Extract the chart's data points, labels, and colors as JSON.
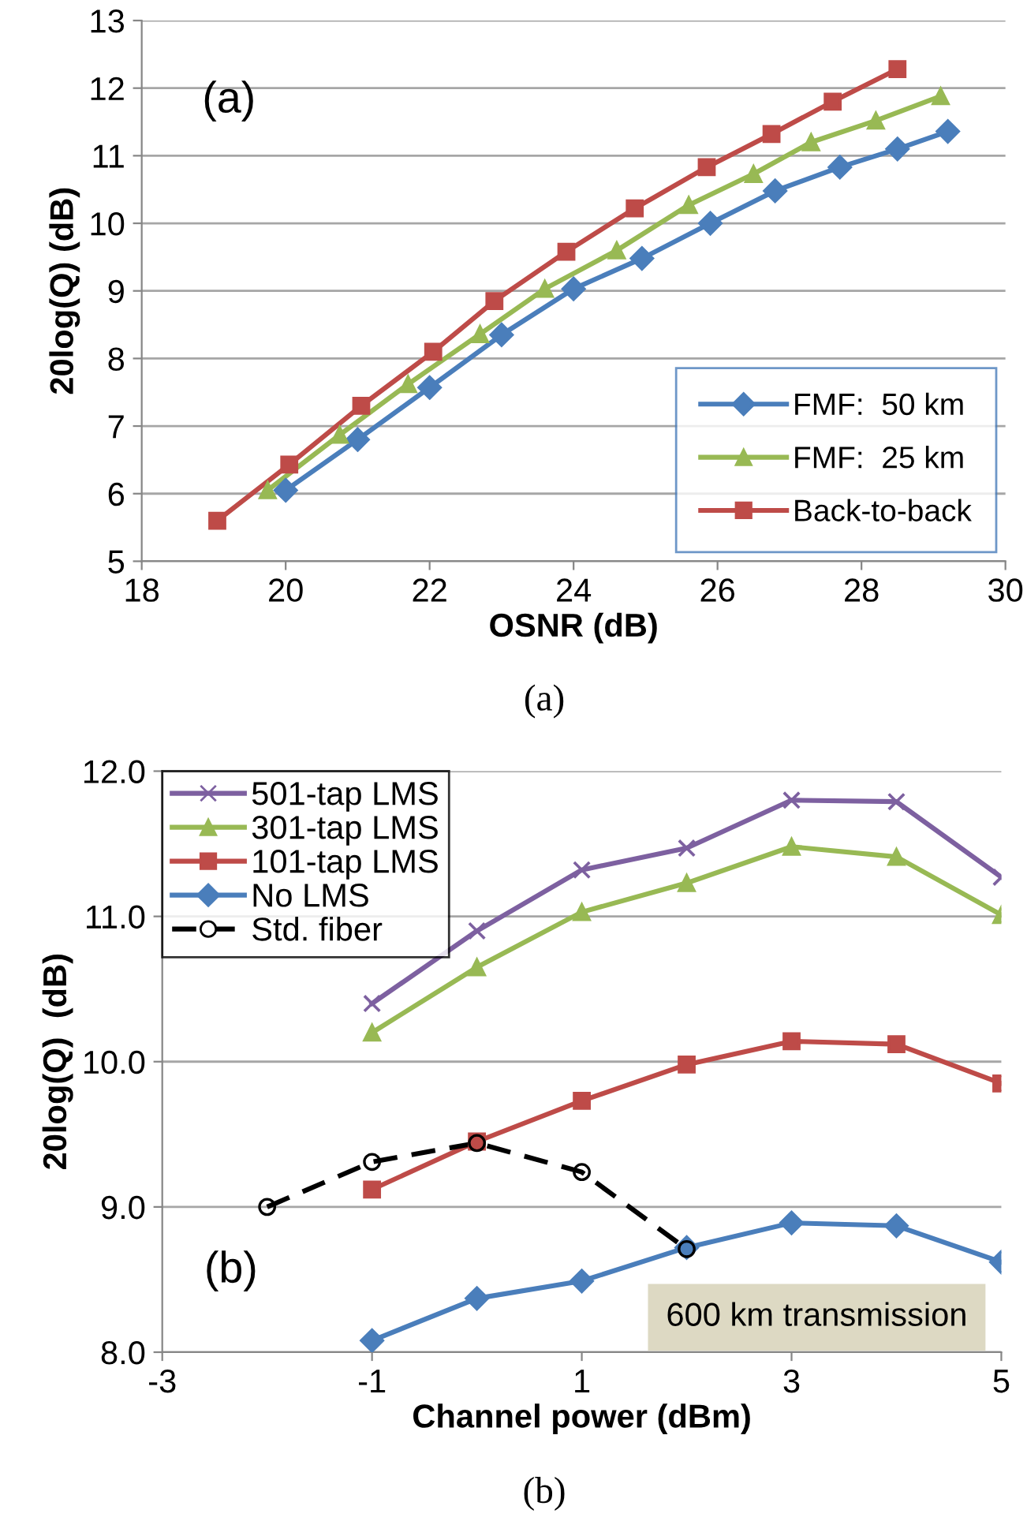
{
  "chart_data": [
    {
      "type": "line",
      "xlabel": "OSNR (dB)",
      "ylabel": "20log(Q) (dB)",
      "xlim": [
        18,
        30
      ],
      "xticks": [
        18,
        20,
        22,
        24,
        26,
        28,
        30
      ],
      "ylim": [
        5,
        13
      ],
      "yticks": [
        5,
        6,
        7,
        8,
        9,
        10,
        11,
        12,
        13
      ],
      "grid": "y",
      "legend": "bottom right",
      "annotations": [
        "(a)",
        "(a)"
      ],
      "series": [
        {
          "name": "FMF:  50 km",
          "color": "#4a7ebb",
          "marker": "diamond",
          "x": [
            20,
            21,
            22,
            23,
            24,
            24.95,
            25.9,
            26.8,
            27.7,
            28.5,
            29.2
          ],
          "values": [
            6.05,
            6.8,
            7.57,
            8.35,
            9.03,
            9.48,
            10.0,
            10.48,
            10.83,
            11.1,
            11.36
          ]
        },
        {
          "name": "FMF:  25 km",
          "color": "#98b954",
          "marker": "triangle",
          "x": [
            19.75,
            20.75,
            21.7,
            22.7,
            23.6,
            24.6,
            25.6,
            26.5,
            27.3,
            28.2,
            29.1
          ],
          "values": [
            6.05,
            6.87,
            7.62,
            8.36,
            9.03,
            9.6,
            10.27,
            10.73,
            11.2,
            11.52,
            11.88
          ]
        },
        {
          "name": "Back-to-back",
          "color": "#be4b48",
          "marker": "square",
          "x": [
            19.05,
            20.05,
            21.05,
            22.05,
            22.9,
            23.9,
            24.85,
            25.85,
            26.75,
            27.6,
            28.5
          ],
          "values": [
            5.6,
            6.43,
            7.3,
            8.1,
            8.85,
            9.58,
            10.22,
            10.83,
            11.32,
            11.8,
            12.28
          ]
        }
      ]
    },
    {
      "type": "line",
      "xlabel": "Channel power (dBm)",
      "ylabel": "20log(Q)  (dB)",
      "xlim": [
        -3,
        5
      ],
      "xticks": [
        -3,
        -1,
        1,
        3,
        5
      ],
      "ylim": [
        8,
        12
      ],
      "yticks": [
        {
          "value": 8,
          "label": "8.0"
        },
        {
          "value": 9,
          "label": "9.0"
        },
        {
          "value": 10,
          "label": "10.0"
        },
        {
          "value": 11,
          "label": "11.0"
        },
        {
          "value": 12,
          "label": "12.0"
        }
      ],
      "grid": "y",
      "legend": "top left",
      "annotations": [
        "(b)",
        "600 km transmission",
        "(b)"
      ],
      "series": [
        {
          "name": "501-tap LMS",
          "color": "#7d60a0",
          "marker": "cross",
          "x": [
            -1,
            0,
            1,
            2,
            3,
            4,
            5
          ],
          "values": [
            10.4,
            10.9,
            11.32,
            11.47,
            11.8,
            11.79,
            11.27
          ]
        },
        {
          "name": "301-tap LMS",
          "color": "#98b954",
          "marker": "triangle",
          "x": [
            -1,
            0,
            1,
            2,
            3,
            4,
            5
          ],
          "values": [
            10.2,
            10.65,
            11.03,
            11.23,
            11.48,
            11.41,
            11.01
          ]
        },
        {
          "name": "101-tap LMS",
          "color": "#be4b48",
          "marker": "square",
          "x": [
            -1,
            0,
            1,
            2,
            3,
            4,
            5
          ],
          "values": [
            9.12,
            9.45,
            9.73,
            9.98,
            10.14,
            10.12,
            9.85
          ]
        },
        {
          "name": "No LMS",
          "color": "#4a7ebb",
          "marker": "diamond",
          "x": [
            -1,
            0,
            1,
            2,
            3,
            4,
            5
          ],
          "values": [
            8.08,
            8.37,
            8.49,
            8.72,
            8.89,
            8.87,
            8.62
          ]
        },
        {
          "name": "Std. fiber",
          "color": "#000000",
          "marker": "circle",
          "line_style": "dashed",
          "x": [
            -2,
            -1,
            0,
            1,
            2
          ],
          "values": [
            9.0,
            9.31,
            9.44,
            9.24,
            8.71
          ]
        }
      ]
    }
  ]
}
